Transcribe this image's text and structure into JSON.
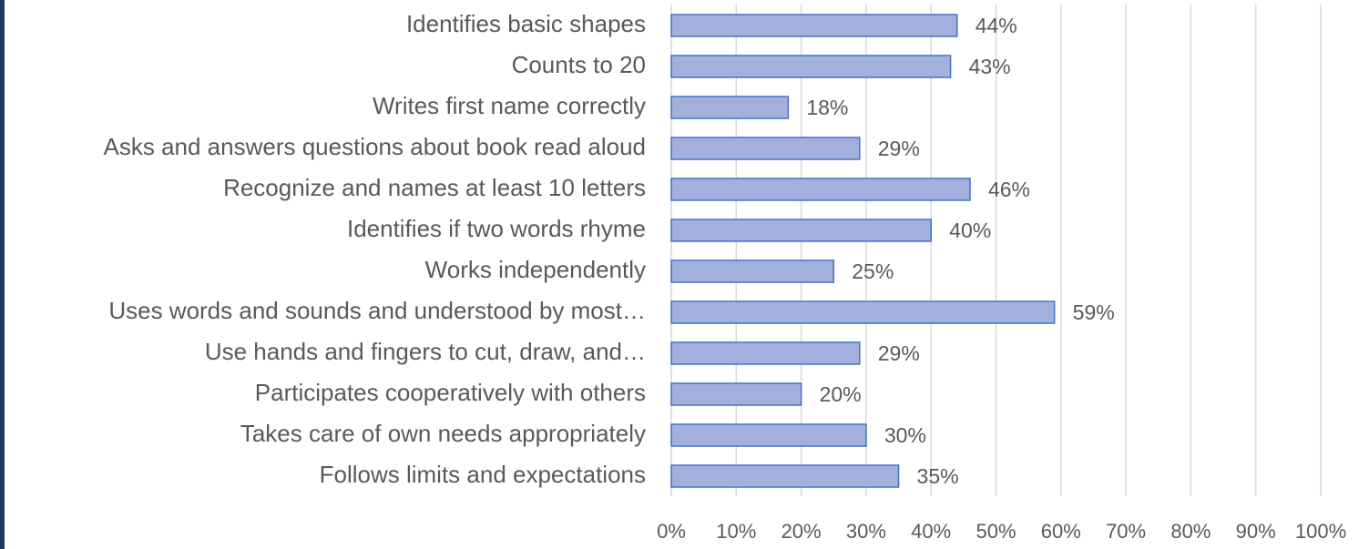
{
  "chart_data": {
    "type": "bar",
    "orientation": "horizontal",
    "categories": [
      "Identifies basic shapes",
      "Counts to 20",
      "Writes first name correctly",
      "Asks and answers questions about book read aloud",
      "Recognize and names at least 10 letters",
      "Identifies if two words rhyme",
      "Works independently",
      "Uses words and sounds and understood by most…",
      "Use hands and fingers to cut, draw, and…",
      "Participates cooperatively with others",
      "Takes care of own needs appropriately",
      "Follows limits and expectations"
    ],
    "values": [
      44,
      43,
      18,
      29,
      46,
      40,
      25,
      59,
      29,
      20,
      30,
      35
    ],
    "value_labels": [
      "44%",
      "43%",
      "18%",
      "29%",
      "46%",
      "40%",
      "25%",
      "59%",
      "29%",
      "20%",
      "30%",
      "35%"
    ],
    "color": "#a3b0de",
    "edge_color": "#4472c4",
    "xlim": [
      0,
      100
    ],
    "xticks": [
      {
        "value": 0,
        "label": "0%"
      },
      {
        "value": 10,
        "label": "10%"
      },
      {
        "value": 20,
        "label": "20%"
      },
      {
        "value": 30,
        "label": "30%"
      },
      {
        "value": 40,
        "label": "40%"
      },
      {
        "value": 50,
        "label": "50%"
      },
      {
        "value": 60,
        "label": "60%"
      },
      {
        "value": 70,
        "label": "70%"
      },
      {
        "value": 80,
        "label": "80%"
      },
      {
        "value": 90,
        "label": "90%"
      },
      {
        "value": 100,
        "label": "100%"
      }
    ],
    "grid": true
  }
}
